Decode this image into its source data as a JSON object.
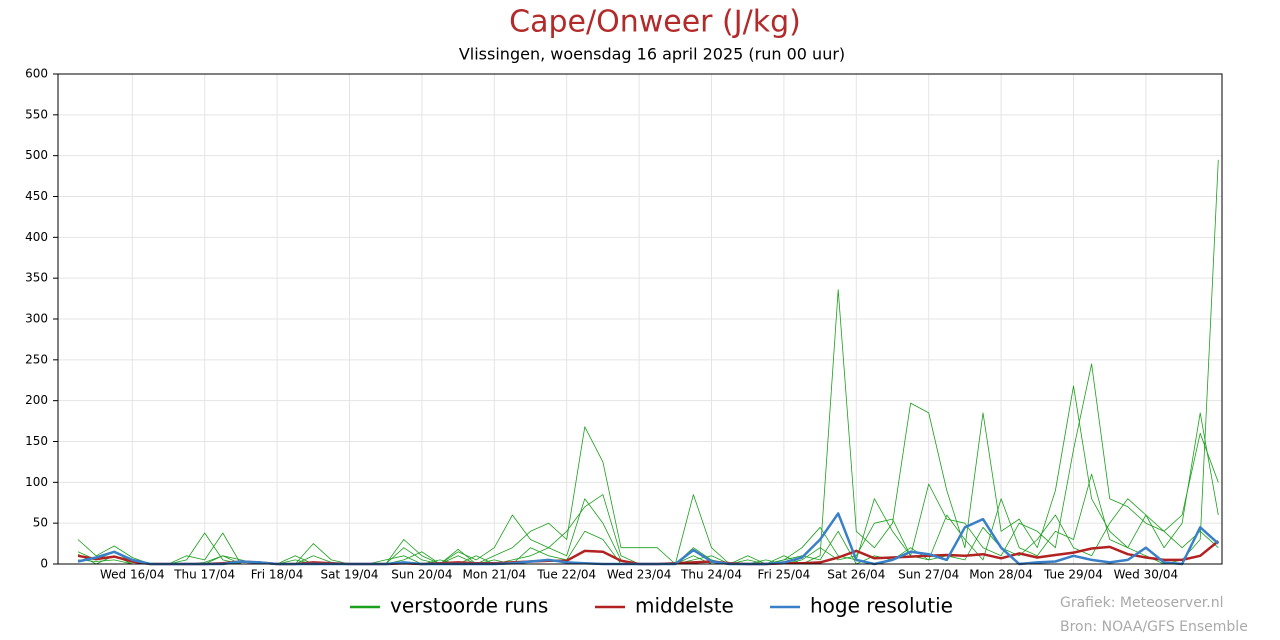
{
  "chart_data": {
    "type": "line",
    "title": "Cape/Onweer (J/kg)",
    "subtitle": "Vlissingen, woensdag 16 april 2025 (run 00 uur)",
    "credits": [
      "Grafiek: Meteoserver.nl",
      "Bron: NOAA/GFS Ensemble"
    ],
    "ylim": [
      0,
      600
    ],
    "yticks": [
      0,
      50,
      100,
      150,
      200,
      250,
      300,
      350,
      400,
      450,
      500,
      550,
      600
    ],
    "grid": true,
    "categories": [
      null,
      null,
      null,
      "Wed 16/04",
      null,
      null,
      null,
      "Thu 17/04",
      null,
      null,
      null,
      "Fri 18/04",
      null,
      null,
      null,
      "Sat 19/04",
      null,
      null,
      null,
      "Sun 20/04",
      null,
      null,
      null,
      "Mon 21/04",
      null,
      null,
      null,
      "Tue 22/04",
      null,
      null,
      null,
      "Wed 23/04",
      null,
      null,
      null,
      "Thu 24/04",
      null,
      null,
      null,
      "Fri 25/04",
      null,
      null,
      null,
      "Sat 26/04",
      null,
      null,
      null,
      "Sun 27/04",
      null,
      null,
      null,
      "Mon 28/04",
      null,
      null,
      null,
      "Tue 29/04",
      null,
      null,
      null,
      "Wed 30/04",
      null,
      null,
      null,
      null
    ],
    "series": [
      {
        "name": "verstoorde runs",
        "color": "#1aa01a",
        "values": [
          30,
          10,
          22,
          8,
          0,
          0,
          0,
          0,
          10,
          5,
          0,
          0,
          0,
          25,
          5,
          0,
          0,
          0,
          20,
          5,
          0,
          18,
          0,
          10,
          20,
          40,
          50,
          30,
          168,
          125,
          20,
          20,
          20,
          0,
          85,
          20,
          0,
          5,
          0,
          10,
          0,
          10,
          336,
          40,
          20,
          50,
          197,
          185,
          90,
          20,
          185,
          40,
          55,
          20,
          90,
          218,
          80,
          40,
          20,
          60,
          20,
          50,
          185,
          60
        ]
      },
      {
        "color": "#1aa01a",
        "values": [
          15,
          5,
          15,
          2,
          0,
          0,
          5,
          38,
          5,
          0,
          0,
          0,
          0,
          10,
          2,
          0,
          0,
          0,
          30,
          10,
          0,
          15,
          5,
          20,
          60,
          30,
          20,
          10,
          80,
          50,
          5,
          0,
          0,
          0,
          20,
          5,
          0,
          10,
          0,
          5,
          20,
          45,
          10,
          5,
          80,
          40,
          10,
          98,
          55,
          50,
          20,
          10,
          50,
          40,
          20,
          140,
          245,
          80,
          70,
          50,
          40,
          60,
          160,
          100
        ]
      },
      {
        "color": "#1aa01a",
        "values": [
          5,
          3,
          5,
          0,
          0,
          0,
          10,
          5,
          38,
          0,
          0,
          0,
          10,
          0,
          0,
          0,
          0,
          5,
          10,
          0,
          5,
          0,
          10,
          0,
          5,
          10,
          20,
          40,
          70,
          85,
          10,
          0,
          0,
          0,
          10,
          0,
          0,
          0,
          0,
          5,
          10,
          5,
          40,
          0,
          10,
          5,
          20,
          5,
          60,
          30,
          5,
          80,
          20,
          10,
          40,
          30,
          110,
          30,
          20,
          10,
          0,
          5,
          30,
          495
        ]
      },
      {
        "color": "#1aa01a",
        "values": [
          12,
          0,
          10,
          0,
          0,
          0,
          0,
          2,
          10,
          0,
          0,
          0,
          5,
          0,
          0,
          0,
          0,
          0,
          5,
          15,
          0,
          10,
          0,
          5,
          0,
          20,
          10,
          5,
          40,
          30,
          0,
          0,
          0,
          0,
          5,
          10,
          0,
          0,
          5,
          0,
          5,
          20,
          5,
          10,
          50,
          55,
          10,
          5,
          10,
          5,
          45,
          20,
          10,
          30,
          60,
          20,
          10,
          50,
          80,
          60,
          40,
          20,
          40,
          20
        ]
      },
      {
        "name": "middelste",
        "color": "#b22222",
        "width": 2.5,
        "values": [
          10,
          6,
          9,
          3,
          0,
          0,
          0,
          0,
          1,
          3,
          2,
          0,
          0,
          2,
          1,
          0,
          0,
          0,
          1,
          0,
          1,
          2,
          1,
          1,
          2,
          3,
          4,
          4,
          16,
          15,
          4,
          0,
          0,
          1,
          2,
          3,
          1,
          0,
          0,
          1,
          1,
          2,
          8,
          16,
          7,
          8,
          9,
          10,
          11,
          10,
          12,
          7,
          13,
          8,
          11,
          14,
          19,
          21,
          12,
          8,
          5,
          5,
          10,
          28
        ]
      },
      {
        "name": "hoge resolutie",
        "color": "#3a80c8",
        "width": 2.5,
        "values": [
          3,
          8,
          15,
          5,
          0,
          0,
          0,
          0,
          0,
          3,
          2,
          0,
          0,
          0,
          0,
          0,
          0,
          0,
          2,
          0,
          0,
          0,
          0,
          0,
          1,
          3,
          5,
          2,
          1,
          0,
          0,
          0,
          0,
          0,
          17,
          3,
          0,
          0,
          0,
          2,
          8,
          30,
          62,
          5,
          0,
          5,
          15,
          12,
          5,
          45,
          55,
          20,
          0,
          2,
          3,
          10,
          5,
          2,
          5,
          20,
          2,
          0,
          45,
          25
        ]
      }
    ]
  }
}
